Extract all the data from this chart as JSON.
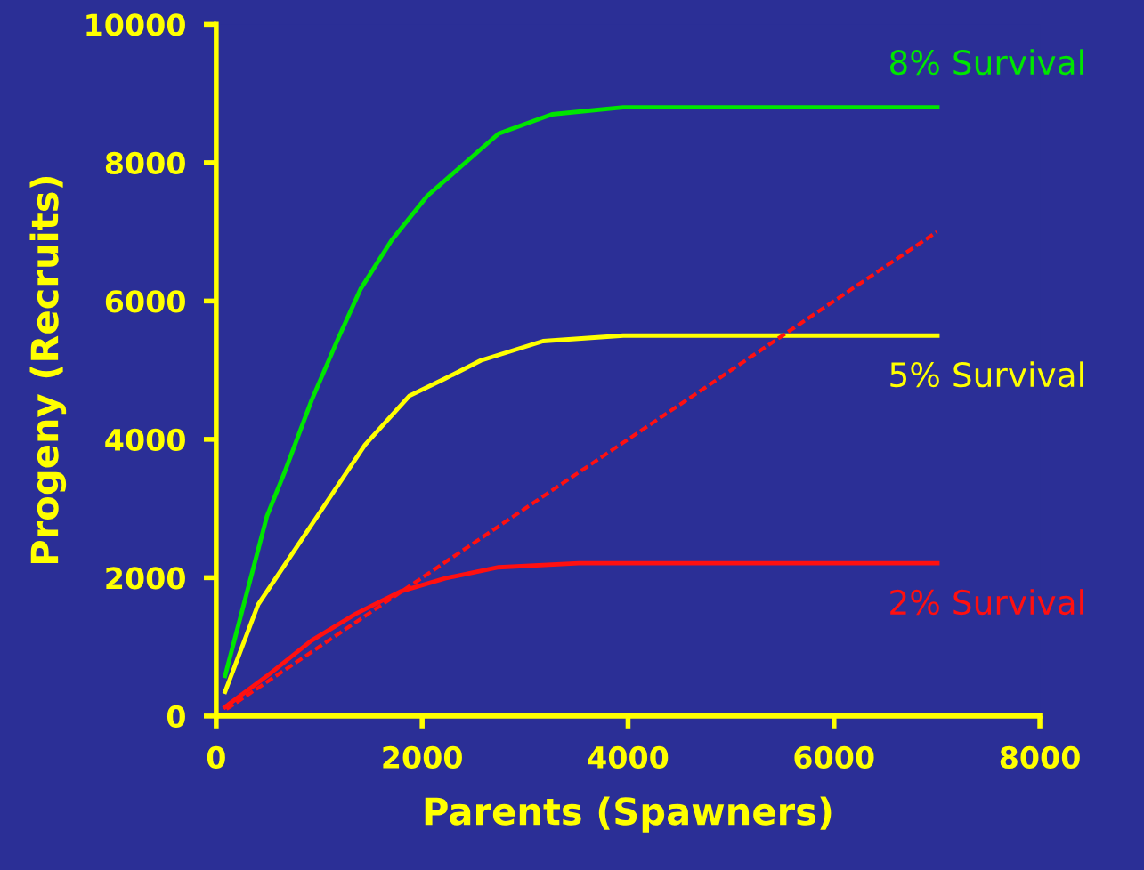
{
  "chart_data": {
    "type": "line",
    "xlabel": "Parents (Spawners)",
    "ylabel": "Progeny (Recruits)",
    "xlim": [
      0,
      8000
    ],
    "ylim": [
      0,
      10000
    ],
    "xticks": [
      0,
      2000,
      4000,
      6000,
      8000
    ],
    "yticks": [
      0,
      2000,
      4000,
      6000,
      8000,
      10000
    ],
    "grid": false,
    "legend": false,
    "marker": "none",
    "series": [
      {
        "name": "8% Survival",
        "color": "#00e600",
        "x": [
          86,
          493,
          666,
          925,
          1185,
          1401,
          1704,
          2050,
          2396,
          2742,
          3261,
          3953,
          7005
        ],
        "values": [
          580,
          2890,
          3530,
          4560,
          5460,
          6170,
          6880,
          7520,
          7970,
          8420,
          8700,
          8800,
          8800
        ]
      },
      {
        "name": "5% Survival",
        "color": "#ffff00",
        "x": [
          86,
          407,
          753,
          1099,
          1445,
          1877,
          2223,
          2569,
          3174,
          3953,
          7005
        ],
        "values": [
          350,
          1610,
          2380,
          3150,
          3920,
          4630,
          4880,
          5140,
          5420,
          5500,
          5500
        ]
      },
      {
        "name": "2% Survival",
        "color": "#ff1010",
        "x": [
          86,
          493,
          925,
          1358,
          1790,
          2223,
          2742,
          3521,
          7005
        ],
        "values": [
          130,
          580,
          1090,
          1480,
          1800,
          1990,
          2150,
          2210,
          2210
        ]
      },
      {
        "color": "#ff1010",
        "line_style": "dashed",
        "x": [
          100,
          7000
        ],
        "values": [
          100,
          7000
        ]
      }
    ]
  }
}
